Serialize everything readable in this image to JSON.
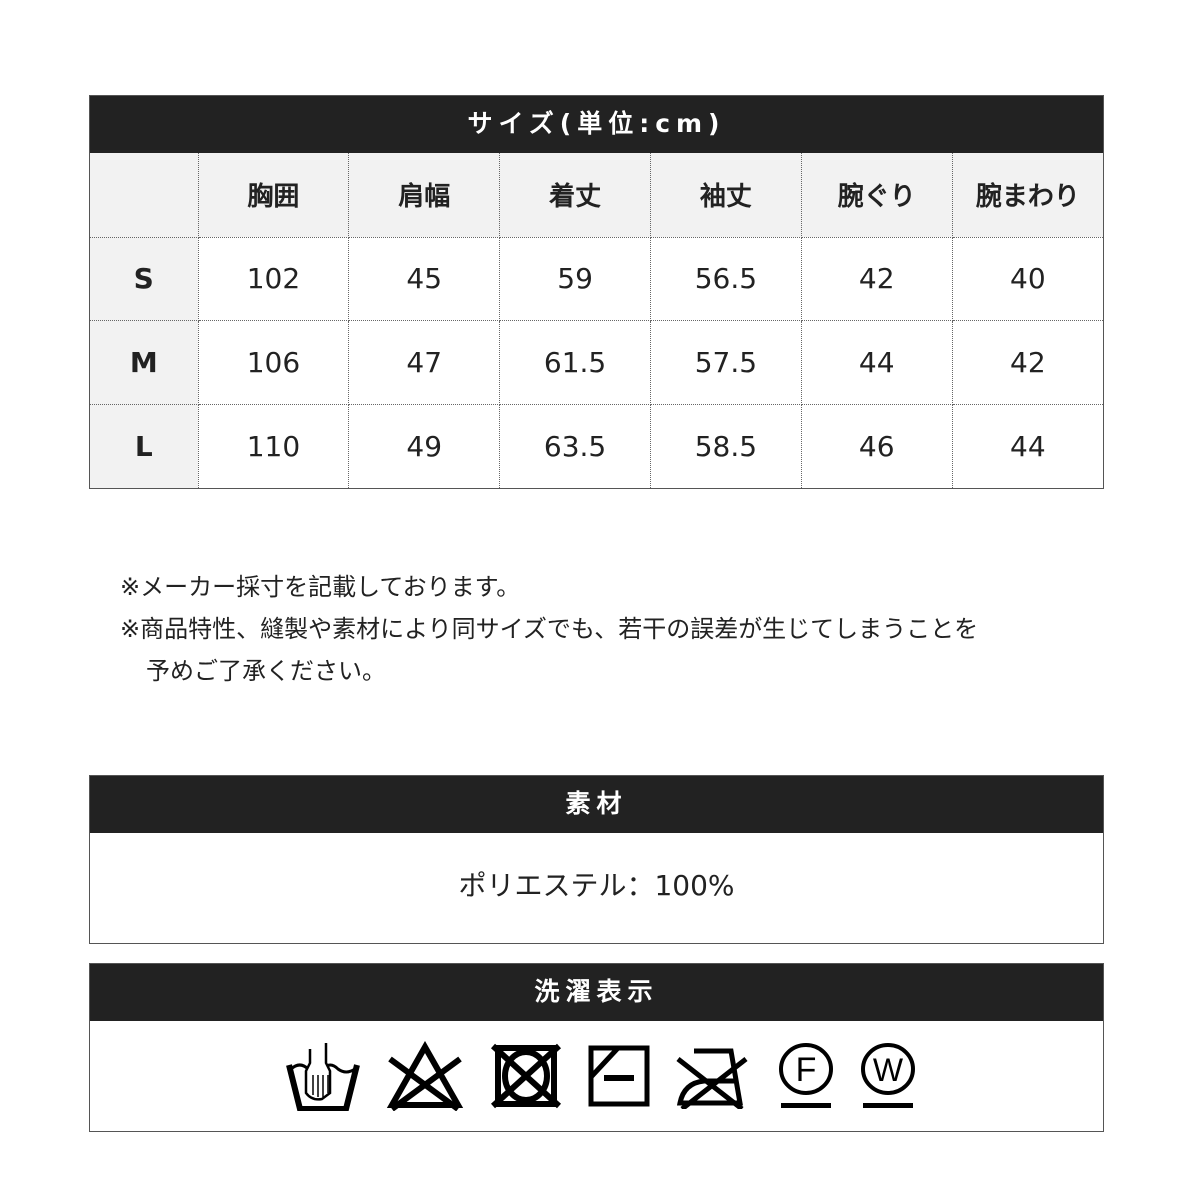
{
  "size_table": {
    "title": "サイズ(単位:cm)",
    "columns": [
      "",
      "胸囲",
      "肩幅",
      "着丈",
      "袖丈",
      "腕ぐり",
      "腕まわり"
    ],
    "rows": [
      {
        "size": "S",
        "values": [
          "102",
          "45",
          "59",
          "56.5",
          "42",
          "40"
        ]
      },
      {
        "size": "M",
        "values": [
          "106",
          "47",
          "61.5",
          "57.5",
          "44",
          "42"
        ]
      },
      {
        "size": "L",
        "values": [
          "110",
          "49",
          "63.5",
          "58.5",
          "46",
          "44"
        ]
      }
    ]
  },
  "notes": [
    "※メーカー採寸を記載しております。",
    "※商品特性、縫製や素材により同サイズでも、若干の誤差が生じてしまうことを",
    "予めご了承ください。"
  ],
  "material": {
    "title": "素材",
    "value": "ポリエステル：100%"
  },
  "care": {
    "title": "洗濯表示",
    "icons": [
      "hand-wash-icon",
      "no-bleach-icon",
      "no-tumble-dry-icon",
      "line-dry-shade-icon",
      "no-iron-icon",
      "dry-clean-f-icon",
      "wet-clean-w-icon"
    ],
    "letters": {
      "f": "F",
      "w": "W"
    }
  }
}
